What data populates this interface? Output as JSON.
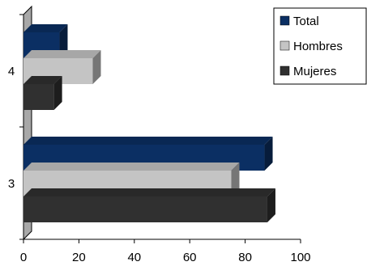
{
  "chart_data": {
    "type": "bar",
    "orientation": "horizontal",
    "three_d": true,
    "categories": [
      "3",
      "4"
    ],
    "series": [
      {
        "name": "Total",
        "color": "#0b2f63",
        "values": [
          87,
          13
        ]
      },
      {
        "name": "Hombres",
        "color": "#c4c4c4",
        "values": [
          75,
          25
        ]
      },
      {
        "name": "Mujeres",
        "color": "#303030",
        "values": [
          88,
          11
        ]
      }
    ],
    "xlim": [
      0,
      100
    ],
    "xticks": [
      "0",
      "20",
      "40",
      "60",
      "80",
      "100"
    ],
    "grid": false,
    "legend_position": "top-right"
  }
}
